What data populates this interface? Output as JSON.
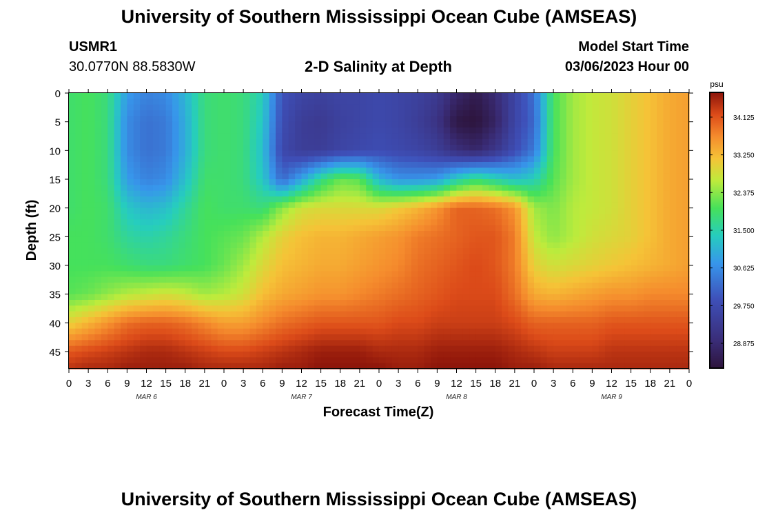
{
  "page": {
    "title": "University of Southern Mississippi Ocean Cube (AMSEAS)",
    "footer_title": "University of Southern Mississippi Ocean Cube (AMSEAS)",
    "station_id": "USMR1",
    "station_coords": "30.0770N  88.5830W",
    "model_start_label": "Model Start Time",
    "model_start_value": "03/06/2023 Hour 00"
  },
  "chart_data": {
    "type": "heatmap",
    "title": "2-D Salinity at Depth",
    "xlabel": "Forecast Time(Z)",
    "ylabel": "Depth (ft)",
    "x_unit": "hours since 03/06/2023 00Z",
    "xlim": [
      0,
      96
    ],
    "ylim": [
      48,
      0
    ],
    "x_ticks": [
      0,
      3,
      6,
      9,
      12,
      15,
      18,
      21,
      24,
      27,
      30,
      33,
      36,
      39,
      42,
      45,
      48,
      51,
      54,
      57,
      60,
      63,
      66,
      69,
      72,
      75,
      78,
      81,
      84,
      87,
      90,
      93,
      96
    ],
    "x_tick_labels": [
      "0",
      "3",
      "6",
      "9",
      "12",
      "15",
      "18",
      "21",
      "0",
      "3",
      "6",
      "9",
      "12",
      "15",
      "18",
      "21",
      "0",
      "3",
      "6",
      "9",
      "12",
      "15",
      "18",
      "21",
      "0",
      "3",
      "6",
      "9",
      "12",
      "15",
      "18",
      "21",
      "0"
    ],
    "y_ticks": [
      0,
      5,
      10,
      15,
      20,
      25,
      30,
      35,
      40,
      45
    ],
    "y_tick_labels": [
      "0",
      "5",
      "10",
      "15",
      "20",
      "25",
      "30",
      "35",
      "40",
      "45"
    ],
    "date_labels": [
      {
        "hour": 12,
        "text": "MAR 6"
      },
      {
        "hour": 36,
        "text": "MAR 7"
      },
      {
        "hour": 60,
        "text": "MAR 8"
      },
      {
        "hour": 84,
        "text": "MAR 9"
      }
    ],
    "colorbar": {
      "unit": "psu",
      "range": [
        28.3,
        34.7
      ],
      "ticks": [
        34.125,
        33.25,
        32.375,
        31.5,
        30.625,
        29.75,
        28.875
      ],
      "tick_labels": [
        "34.125",
        "33.250",
        "32.375",
        "31.500",
        "30.625",
        "29.750",
        "28.875"
      ]
    },
    "salinity_grid": {
      "depths_ft": [
        0,
        5,
        10,
        15,
        20,
        25,
        30,
        35,
        40,
        45,
        48
      ],
      "hours": [
        0,
        3,
        6,
        9,
        12,
        15,
        18,
        21,
        24,
        27,
        30,
        33,
        36,
        39,
        42,
        45,
        48,
        51,
        54,
        57,
        60,
        63,
        66,
        69,
        72,
        75,
        78,
        81,
        84,
        87,
        90,
        93,
        96
      ],
      "values_psu": [
        [
          31.9,
          32.0,
          31.8,
          30.8,
          30.5,
          30.6,
          31.1,
          31.8,
          31.9,
          31.8,
          31.4,
          29.9,
          29.6,
          29.5,
          29.6,
          29.6,
          29.7,
          29.6,
          29.5,
          29.3,
          28.8,
          28.5,
          28.9,
          29.6,
          30.3,
          32.0,
          32.5,
          32.7,
          32.8,
          33.0,
          33.2,
          33.4,
          33.5
        ],
        [
          31.9,
          32.0,
          31.8,
          30.6,
          30.3,
          30.4,
          31.0,
          31.8,
          31.9,
          31.8,
          31.3,
          29.8,
          29.4,
          29.3,
          29.5,
          29.6,
          29.7,
          29.6,
          29.4,
          29.1,
          28.4,
          28.3,
          28.7,
          29.6,
          30.2,
          32.0,
          32.5,
          32.7,
          32.8,
          33.0,
          33.2,
          33.4,
          33.5
        ],
        [
          31.9,
          32.0,
          31.8,
          30.6,
          30.3,
          30.4,
          31.0,
          31.8,
          31.9,
          31.8,
          31.2,
          29.7,
          29.4,
          29.4,
          29.6,
          29.7,
          29.8,
          29.7,
          29.6,
          29.4,
          29.0,
          28.8,
          29.2,
          29.8,
          30.4,
          32.0,
          32.5,
          32.7,
          32.8,
          33.0,
          33.2,
          33.4,
          33.5
        ],
        [
          31.9,
          32.0,
          31.8,
          30.8,
          30.5,
          30.6,
          31.2,
          31.9,
          31.9,
          31.8,
          31.3,
          30.2,
          30.9,
          31.7,
          32.2,
          32.1,
          31.1,
          30.7,
          30.7,
          30.8,
          31.4,
          31.8,
          31.5,
          31.2,
          31.4,
          32.1,
          32.5,
          32.7,
          32.8,
          33.0,
          33.2,
          33.4,
          33.5
        ],
        [
          31.9,
          32.0,
          31.9,
          31.3,
          31.1,
          31.2,
          31.6,
          32.0,
          31.9,
          31.9,
          31.8,
          32.4,
          32.8,
          32.9,
          32.9,
          32.9,
          32.9,
          33.1,
          33.3,
          33.6,
          34.0,
          34.0,
          33.9,
          33.6,
          32.5,
          32.3,
          32.6,
          32.7,
          32.8,
          33.0,
          33.2,
          33.4,
          33.5
        ],
        [
          32.0,
          32.0,
          31.9,
          31.6,
          31.5,
          31.6,
          31.8,
          32.0,
          32.1,
          32.2,
          32.6,
          33.0,
          33.2,
          33.3,
          33.3,
          33.4,
          33.5,
          33.6,
          33.8,
          33.9,
          34.0,
          34.1,
          34.1,
          33.8,
          32.7,
          32.4,
          32.6,
          32.8,
          32.9,
          33.0,
          33.2,
          33.4,
          33.5
        ],
        [
          32.0,
          32.0,
          32.0,
          31.9,
          31.8,
          31.8,
          31.9,
          32.0,
          32.2,
          32.5,
          32.9,
          33.2,
          33.3,
          33.4,
          33.4,
          33.5,
          33.6,
          33.7,
          33.9,
          34.0,
          34.1,
          34.2,
          34.1,
          33.8,
          33.0,
          32.8,
          32.9,
          33.0,
          33.1,
          33.2,
          33.3,
          33.4,
          33.5
        ],
        [
          32.1,
          32.2,
          32.4,
          32.6,
          32.7,
          32.8,
          32.7,
          32.5,
          32.6,
          32.8,
          33.2,
          33.4,
          33.5,
          33.6,
          33.6,
          33.7,
          33.8,
          33.9,
          34.0,
          34.1,
          34.2,
          34.2,
          34.2,
          33.9,
          33.4,
          33.3,
          33.4,
          33.5,
          33.6,
          33.6,
          33.7,
          33.7,
          33.7
        ],
        [
          33.0,
          33.3,
          33.6,
          33.9,
          34.0,
          34.0,
          33.9,
          33.7,
          33.5,
          33.5,
          33.7,
          33.9,
          34.0,
          34.1,
          34.1,
          34.1,
          34.1,
          34.2,
          34.2,
          34.3,
          34.3,
          34.3,
          34.3,
          34.2,
          34.0,
          34.0,
          34.0,
          34.0,
          34.1,
          34.1,
          34.1,
          34.1,
          34.1
        ],
        [
          34.1,
          34.2,
          34.3,
          34.4,
          34.5,
          34.5,
          34.4,
          34.3,
          34.2,
          34.2,
          34.3,
          34.4,
          34.5,
          34.6,
          34.6,
          34.6,
          34.5,
          34.5,
          34.5,
          34.6,
          34.6,
          34.6,
          34.6,
          34.5,
          34.4,
          34.3,
          34.3,
          34.3,
          34.4,
          34.4,
          34.4,
          34.4,
          34.4
        ],
        [
          34.4,
          34.5,
          34.5,
          34.6,
          34.6,
          34.6,
          34.6,
          34.5,
          34.5,
          34.5,
          34.5,
          34.6,
          34.6,
          34.7,
          34.7,
          34.7,
          34.7,
          34.6,
          34.6,
          34.7,
          34.7,
          34.7,
          34.7,
          34.6,
          34.6,
          34.5,
          34.5,
          34.5,
          34.5,
          34.5,
          34.5,
          34.5,
          34.5
        ]
      ]
    }
  }
}
